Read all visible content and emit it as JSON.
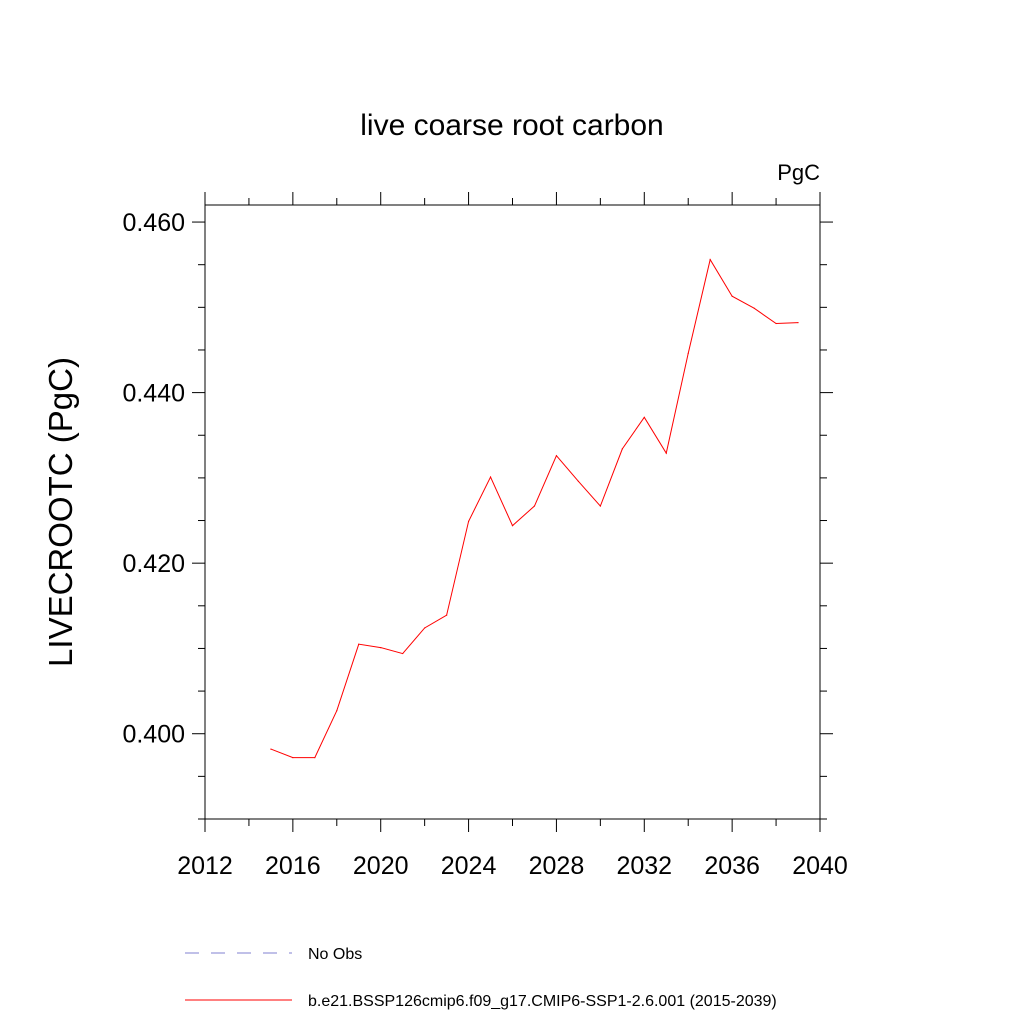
{
  "chart_data": {
    "type": "line",
    "title": "live coarse root carbon",
    "units": "PgC",
    "xlabel": "",
    "ylabel": "LIVECROOTC  (PgC)",
    "xlim": [
      2012,
      2040
    ],
    "ylim": [
      0.39,
      0.462
    ],
    "x_ticks": [
      2012,
      2016,
      2020,
      2024,
      2028,
      2032,
      2036,
      2040
    ],
    "x_tick_labels": [
      "2012",
      "2016",
      "2020",
      "2024",
      "2028",
      "2032",
      "2036",
      "2040"
    ],
    "y_ticks": [
      0.4,
      0.42,
      0.44,
      0.46
    ],
    "y_tick_labels": [
      "0.400",
      "0.420",
      "0.440",
      "0.460"
    ],
    "y_minor_step": 0.005,
    "x_minor_step": 2,
    "grid": false,
    "series": [
      {
        "name": "b.e21.BSSP126cmip6.f09_g17.CMIP6-SSP1-2.6.001 (2015-2039)",
        "color": "#ff0000",
        "style": "solid",
        "x": [
          2015,
          2016,
          2017,
          2018,
          2019,
          2020,
          2021,
          2022,
          2023,
          2024,
          2025,
          2026,
          2027,
          2028,
          2029,
          2030,
          2031,
          2032,
          2033,
          2034,
          2035,
          2036,
          2037,
          2038,
          2039
        ],
        "values": [
          0.3982,
          0.3972,
          0.3972,
          0.4027,
          0.4105,
          0.4101,
          0.4094,
          0.4124,
          0.4139,
          0.4249,
          0.4301,
          0.4244,
          0.4267,
          0.4326,
          0.4296,
          0.4267,
          0.4334,
          0.4371,
          0.4329,
          0.4446,
          0.4556,
          0.4513,
          0.4499,
          0.4481,
          0.4482
        ]
      }
    ],
    "legend": [
      {
        "label": "No Obs",
        "color": "#8080d0",
        "style": "dashed"
      },
      {
        "label": "b.e21.BSSP126cmip6.f09_g17.CMIP6-SSP1-2.6.001 (2015-2039)",
        "color": "#ff0000",
        "style": "solid"
      }
    ],
    "legend_position": "bottom"
  }
}
